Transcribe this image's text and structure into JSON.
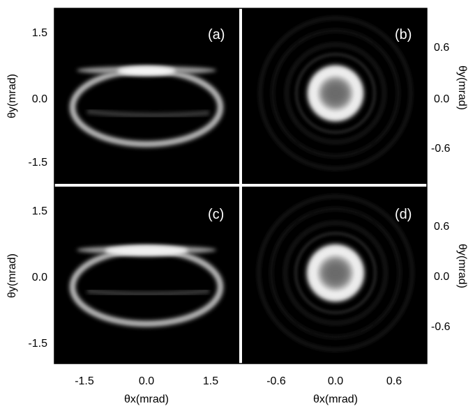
{
  "figure": {
    "panels": [
      {
        "id": "a",
        "label": "(a)",
        "pattern": "ellipse-ring"
      },
      {
        "id": "b",
        "label": "(b)",
        "pattern": "donut"
      },
      {
        "id": "c",
        "label": "(c)",
        "pattern": "ellipse-ring"
      },
      {
        "id": "d",
        "label": "(d)",
        "pattern": "donut"
      }
    ],
    "axes": {
      "left_ylabel": "θy(mrad)",
      "right_ylabel": "θy(mrad)",
      "bottom_xlabel": "θx(mrad)",
      "left_xticks": [
        "-1.5",
        "0.0",
        "1.5"
      ],
      "right_xticks": [
        "-0.6",
        "0.0",
        "0.6"
      ],
      "left_yticks": [
        "1.5",
        "0.0",
        "-1.5"
      ],
      "right_yticks": [
        "0.6",
        "0.0",
        "-0.6"
      ]
    }
  },
  "colors": {
    "background": "#000000",
    "frame": "#000000",
    "panel_label": "#ffffff",
    "divider": "#ffffff"
  }
}
